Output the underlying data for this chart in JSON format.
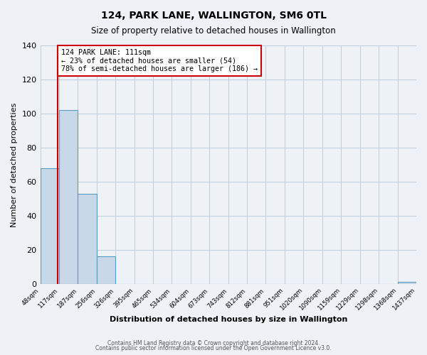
{
  "title": "124, PARK LANE, WALLINGTON, SM6 0TL",
  "subtitle": "Size of property relative to detached houses in Wallington",
  "xlabel": "Distribution of detached houses by size in Wallington",
  "ylabel": "Number of detached properties",
  "footer_lines": [
    "Contains HM Land Registry data © Crown copyright and database right 2024.",
    "Contains public sector information licensed under the Open Government Licence v3.0."
  ],
  "bar_edges": [
    48,
    117,
    187,
    256,
    326,
    395,
    465,
    534,
    604,
    673,
    743,
    812,
    881,
    951,
    1020,
    1090,
    1159,
    1229,
    1298,
    1368,
    1437
  ],
  "bar_heights": [
    68,
    102,
    53,
    16,
    0,
    0,
    0,
    0,
    0,
    0,
    0,
    0,
    0,
    0,
    0,
    0,
    0,
    0,
    0,
    1
  ],
  "tick_labels": [
    "48sqm",
    "117sqm",
    "187sqm",
    "256sqm",
    "326sqm",
    "395sqm",
    "465sqm",
    "534sqm",
    "604sqm",
    "673sqm",
    "743sqm",
    "812sqm",
    "881sqm",
    "951sqm",
    "1020sqm",
    "1090sqm",
    "1159sqm",
    "1229sqm",
    "1298sqm",
    "1368sqm",
    "1437sqm"
  ],
  "bar_color": "#c8d8e8",
  "bar_edge_color": "#5a9abf",
  "property_line_x": 111,
  "property_line_color": "#cc0000",
  "annotation_line1": "124 PARK LANE: 111sqm",
  "annotation_line2": "← 23% of detached houses are smaller (54)",
  "annotation_line3": "78% of semi-detached houses are larger (186) →",
  "annotation_box_color": "#cc0000",
  "ylim": [
    0,
    140
  ],
  "yticks": [
    0,
    20,
    40,
    60,
    80,
    100,
    120,
    140
  ],
  "background_color": "#eef2f7",
  "plot_bg_color": "#eef2f7",
  "grid_color": "#c0ccd8"
}
